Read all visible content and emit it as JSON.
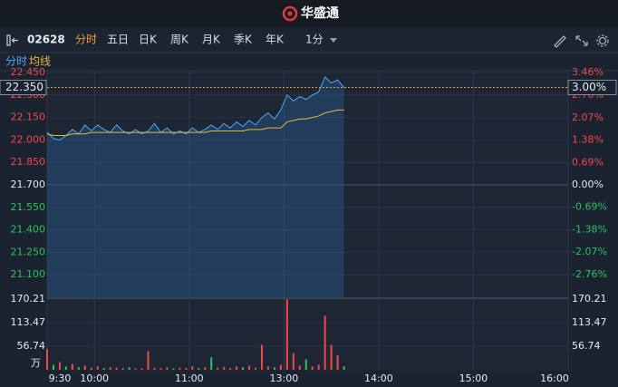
{
  "header": {
    "brand": "华盛通"
  },
  "toolbar": {
    "code": "02628",
    "tabs": [
      "分时",
      "五日",
      "日K",
      "周K",
      "月K",
      "季K",
      "年K"
    ],
    "interval": "1分"
  },
  "chart_data": [
    {
      "type": "line",
      "x": [
        0,
        4,
        8,
        12,
        16,
        20,
        24,
        28,
        32,
        36,
        40,
        44,
        48,
        52,
        56,
        60,
        64,
        68,
        72,
        76,
        80,
        84,
        88,
        92,
        96,
        100,
        104,
        108,
        112,
        116,
        120,
        124,
        128,
        132,
        136,
        140,
        144,
        148,
        152,
        156,
        160,
        164,
        168,
        172,
        176,
        180,
        184,
        188
      ],
      "series": [
        {
          "name": "分时",
          "color": "#4ea6f5",
          "values": [
            22.05,
            22.01,
            22.0,
            22.03,
            22.07,
            22.04,
            22.1,
            22.06,
            22.1,
            22.07,
            22.05,
            22.1,
            22.06,
            22.04,
            22.07,
            22.04,
            22.06,
            22.11,
            22.05,
            22.08,
            22.04,
            22.06,
            22.04,
            22.08,
            22.05,
            22.07,
            22.1,
            22.07,
            22.11,
            22.08,
            22.12,
            22.09,
            22.13,
            22.1,
            22.15,
            22.18,
            22.14,
            22.2,
            22.3,
            22.26,
            22.29,
            22.27,
            22.3,
            22.32,
            22.42,
            22.38,
            22.4,
            22.35
          ]
        },
        {
          "name": "均线",
          "color": "#e8b83a",
          "values": [
            22.04,
            22.03,
            22.03,
            22.03,
            22.04,
            22.04,
            22.04,
            22.05,
            22.05,
            22.05,
            22.05,
            22.05,
            22.05,
            22.05,
            22.05,
            22.05,
            22.05,
            22.05,
            22.05,
            22.05,
            22.05,
            22.05,
            22.05,
            22.05,
            22.05,
            22.05,
            22.06,
            22.06,
            22.06,
            22.06,
            22.06,
            22.06,
            22.07,
            22.07,
            22.07,
            22.08,
            22.08,
            22.08,
            22.12,
            22.13,
            22.14,
            22.14,
            22.15,
            22.16,
            22.18,
            22.19,
            22.2,
            22.2
          ]
        }
      ],
      "xlim": [
        0,
        330
      ],
      "xticks": [
        {
          "value": 0,
          "label": "9:30"
        },
        {
          "value": 30,
          "label": "10:00"
        },
        {
          "value": 90,
          "label": "11:00"
        },
        {
          "value": 150,
          "label": "13:00"
        },
        {
          "value": 210,
          "label": "14:00"
        },
        {
          "value": 270,
          "label": "15:00"
        },
        {
          "value": 330,
          "label": "16:00"
        }
      ],
      "ylim": [
        20.95,
        22.45
      ],
      "yticks": [
        {
          "value": 22.45,
          "label": "22.450"
        },
        {
          "value": 22.3,
          "label": "22.300"
        },
        {
          "value": 22.15,
          "label": "22.150"
        },
        {
          "value": 22.0,
          "label": "22.000"
        },
        {
          "value": 21.85,
          "label": "21.850"
        },
        {
          "value": 21.7,
          "label": "21.700"
        },
        {
          "value": 21.55,
          "label": "21.550"
        },
        {
          "value": 21.4,
          "label": "21.400"
        },
        {
          "value": 21.25,
          "label": "21.250"
        },
        {
          "value": 21.1,
          "label": "21.100"
        }
      ],
      "y2lim": [
        -3.46,
        3.46
      ],
      "y2ticks": [
        {
          "value": 3.46,
          "label": "3.46%"
        },
        {
          "value": 2.76,
          "label": "2.76%"
        },
        {
          "value": 2.07,
          "label": "2.07%"
        },
        {
          "value": 1.38,
          "label": "1.38%"
        },
        {
          "value": 0.69,
          "label": "0.69%"
        },
        {
          "value": 0,
          "label": "0.00%"
        },
        {
          "value": -0.69,
          "label": "-0.69%"
        },
        {
          "value": -1.38,
          "label": "-1.38%"
        },
        {
          "value": -2.07,
          "label": "-2.07%"
        },
        {
          "value": -2.76,
          "label": "-2.76%"
        }
      ],
      "current_price": {
        "value": 22.35,
        "label": "22.350"
      },
      "current_change": {
        "value": 3.0,
        "label": "3.00%"
      },
      "up_color": "#f04848",
      "down_color": "#2ec25b",
      "grid": true
    },
    {
      "type": "bar",
      "x": [
        0,
        4,
        8,
        12,
        16,
        20,
        24,
        28,
        32,
        36,
        40,
        44,
        48,
        52,
        56,
        60,
        64,
        68,
        72,
        76,
        80,
        84,
        88,
        92,
        96,
        100,
        104,
        108,
        112,
        116,
        120,
        124,
        128,
        132,
        136,
        140,
        144,
        148,
        152,
        156,
        160,
        164,
        168,
        172,
        176,
        180,
        184,
        188
      ],
      "values": [
        50,
        12,
        18,
        8,
        14,
        6,
        10,
        5,
        8,
        4,
        6,
        5,
        4,
        6,
        3,
        4,
        45,
        5,
        4,
        6,
        3,
        5,
        4,
        8,
        4,
        6,
        30,
        5,
        7,
        4,
        8,
        6,
        10,
        5,
        60,
        8,
        6,
        12,
        170,
        40,
        10,
        25,
        8,
        12,
        130,
        60,
        35,
        8
      ],
      "colors": [
        "#f04848",
        "#2ec25b",
        "#f04848",
        "#2ec25b",
        "#f04848",
        "#2ec25b",
        "#f04848",
        "#f04848",
        "#f04848",
        "#2ec25b",
        "#f04848",
        "#f04848",
        "#f04848",
        "#2ec25b",
        "#f04848",
        "#f04848",
        "#f04848",
        "#f04848",
        "#f04848",
        "#f04848",
        "#2ec25b",
        "#f04848",
        "#f04848",
        "#f04848",
        "#2ec25b",
        "#f04848",
        "#2ec25b",
        "#f04848",
        "#f04848",
        "#f04848",
        "#f04848",
        "#2ec25b",
        "#f04848",
        "#f04848",
        "#f04848",
        "#f04848",
        "#2ec25b",
        "#f04848",
        "#f04848",
        "#f04848",
        "#f04848",
        "#2ec25b",
        "#f04848",
        "#f04848",
        "#f04848",
        "#f04848",
        "#f04848",
        "#2ec25b"
      ],
      "xlim": [
        0,
        330
      ],
      "ylim": [
        0,
        170.21
      ],
      "yticks": [
        56.74,
        113.47,
        170.21
      ],
      "unit": "万",
      "grid": true
    }
  ]
}
